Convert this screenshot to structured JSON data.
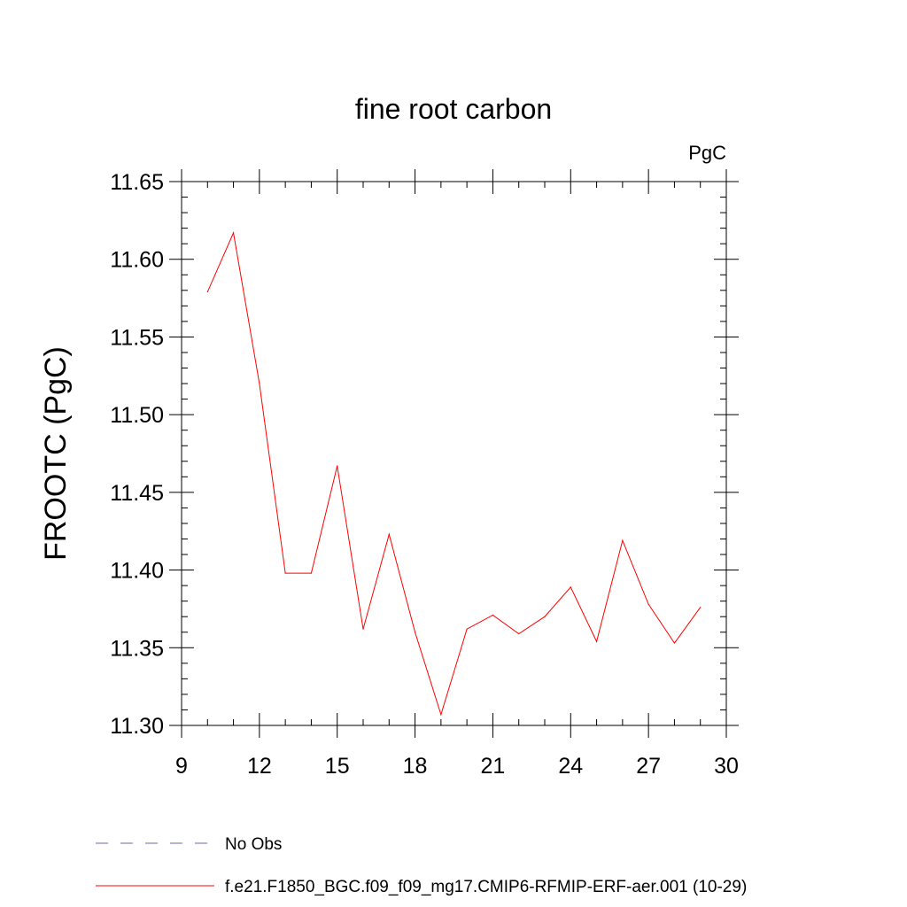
{
  "chart_data": {
    "type": "line",
    "title": "fine root carbon",
    "units_label": "PgC",
    "xlabel": "",
    "ylabel": "FROOTC  (PgC)",
    "xlim": [
      9,
      30
    ],
    "ylim": [
      11.3,
      11.65
    ],
    "xticks": [
      9,
      12,
      15,
      18,
      21,
      24,
      27,
      30
    ],
    "xtick_labels": [
      "9",
      "12",
      "15",
      "18",
      "21",
      "24",
      "27",
      "30"
    ],
    "yticks": [
      11.3,
      11.35,
      11.4,
      11.45,
      11.5,
      11.55,
      11.6,
      11.65
    ],
    "ytick_labels": [
      "11.30",
      "11.35",
      "11.40",
      "11.45",
      "11.50",
      "11.55",
      "11.60",
      "11.65"
    ],
    "grid": false,
    "legend_position": "bottom-left",
    "series": [
      {
        "name": "f.e21.F1850_BGC.f09_f09_mg17.CMIP6-RFMIP-ERF-aer.001 (10-29)",
        "color": "#ff0000",
        "dash": "solid",
        "x": [
          10,
          11,
          12,
          13,
          14,
          15,
          16,
          17,
          18,
          19,
          20,
          21,
          22,
          23,
          24,
          25,
          26,
          27,
          28,
          29
        ],
        "values": [
          11.579,
          11.617,
          11.52,
          11.398,
          11.398,
          11.467,
          11.362,
          11.423,
          11.36,
          11.307,
          11.362,
          11.371,
          11.359,
          11.37,
          11.389,
          11.354,
          11.419,
          11.378,
          11.353,
          11.376
        ]
      }
    ],
    "legend": [
      {
        "label": "No Obs",
        "color": "#6a6aa8",
        "dash": "dashed"
      },
      {
        "label": "f.e21.F1850_BGC.f09_f09_mg17.CMIP6-RFMIP-ERF-aer.001 (10-29)",
        "color": "#ff0000",
        "dash": "solid"
      }
    ]
  }
}
